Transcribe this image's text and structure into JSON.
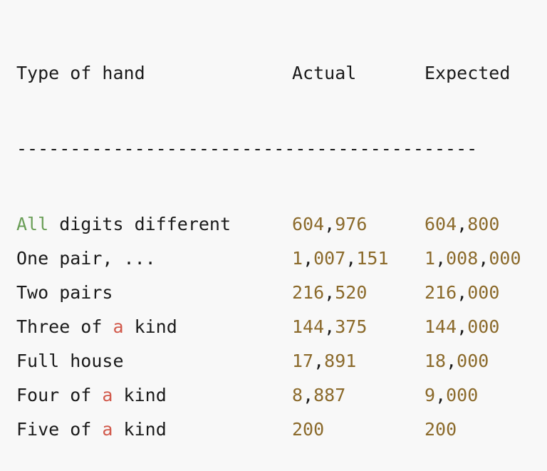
{
  "colors": {
    "background": "#f8f8f8",
    "text": "#1a1a1a",
    "number": "#8b6a2b",
    "keyword_green": "#6a9e57",
    "keyword_red": "#d1584a"
  },
  "header": {
    "type": "Type of hand",
    "actual": "Actual",
    "expected": "Expected"
  },
  "separator": "-------------------------------------------",
  "rows": [
    {
      "type_parts": [
        {
          "text": "All",
          "style": "green"
        },
        {
          "text": " digits different",
          "style": "plain"
        }
      ],
      "actual": "604,976",
      "expected": "604,800"
    },
    {
      "type_parts": [
        {
          "text": "One pair, ...",
          "style": "plain"
        }
      ],
      "actual": "1,007,151",
      "expected": "1,008,000"
    },
    {
      "type_parts": [
        {
          "text": "Two pairs",
          "style": "plain"
        }
      ],
      "actual": "216,520",
      "expected": "216,000"
    },
    {
      "type_parts": [
        {
          "text": "Three of ",
          "style": "plain"
        },
        {
          "text": "a",
          "style": "red"
        },
        {
          "text": " kind",
          "style": "plain"
        }
      ],
      "actual": "144,375",
      "expected": "144,000"
    },
    {
      "type_parts": [
        {
          "text": "Full house",
          "style": "plain"
        }
      ],
      "actual": "17,891",
      "expected": "18,000"
    },
    {
      "type_parts": [
        {
          "text": "Four of ",
          "style": "plain"
        },
        {
          "text": "a",
          "style": "red"
        },
        {
          "text": " kind",
          "style": "plain"
        }
      ],
      "actual": "8,887",
      "expected": "9,000"
    },
    {
      "type_parts": [
        {
          "text": "Five of ",
          "style": "plain"
        },
        {
          "text": "a",
          "style": "red"
        },
        {
          "text": " kind",
          "style": "plain"
        }
      ],
      "actual": "200",
      "expected": "200"
    }
  ]
}
